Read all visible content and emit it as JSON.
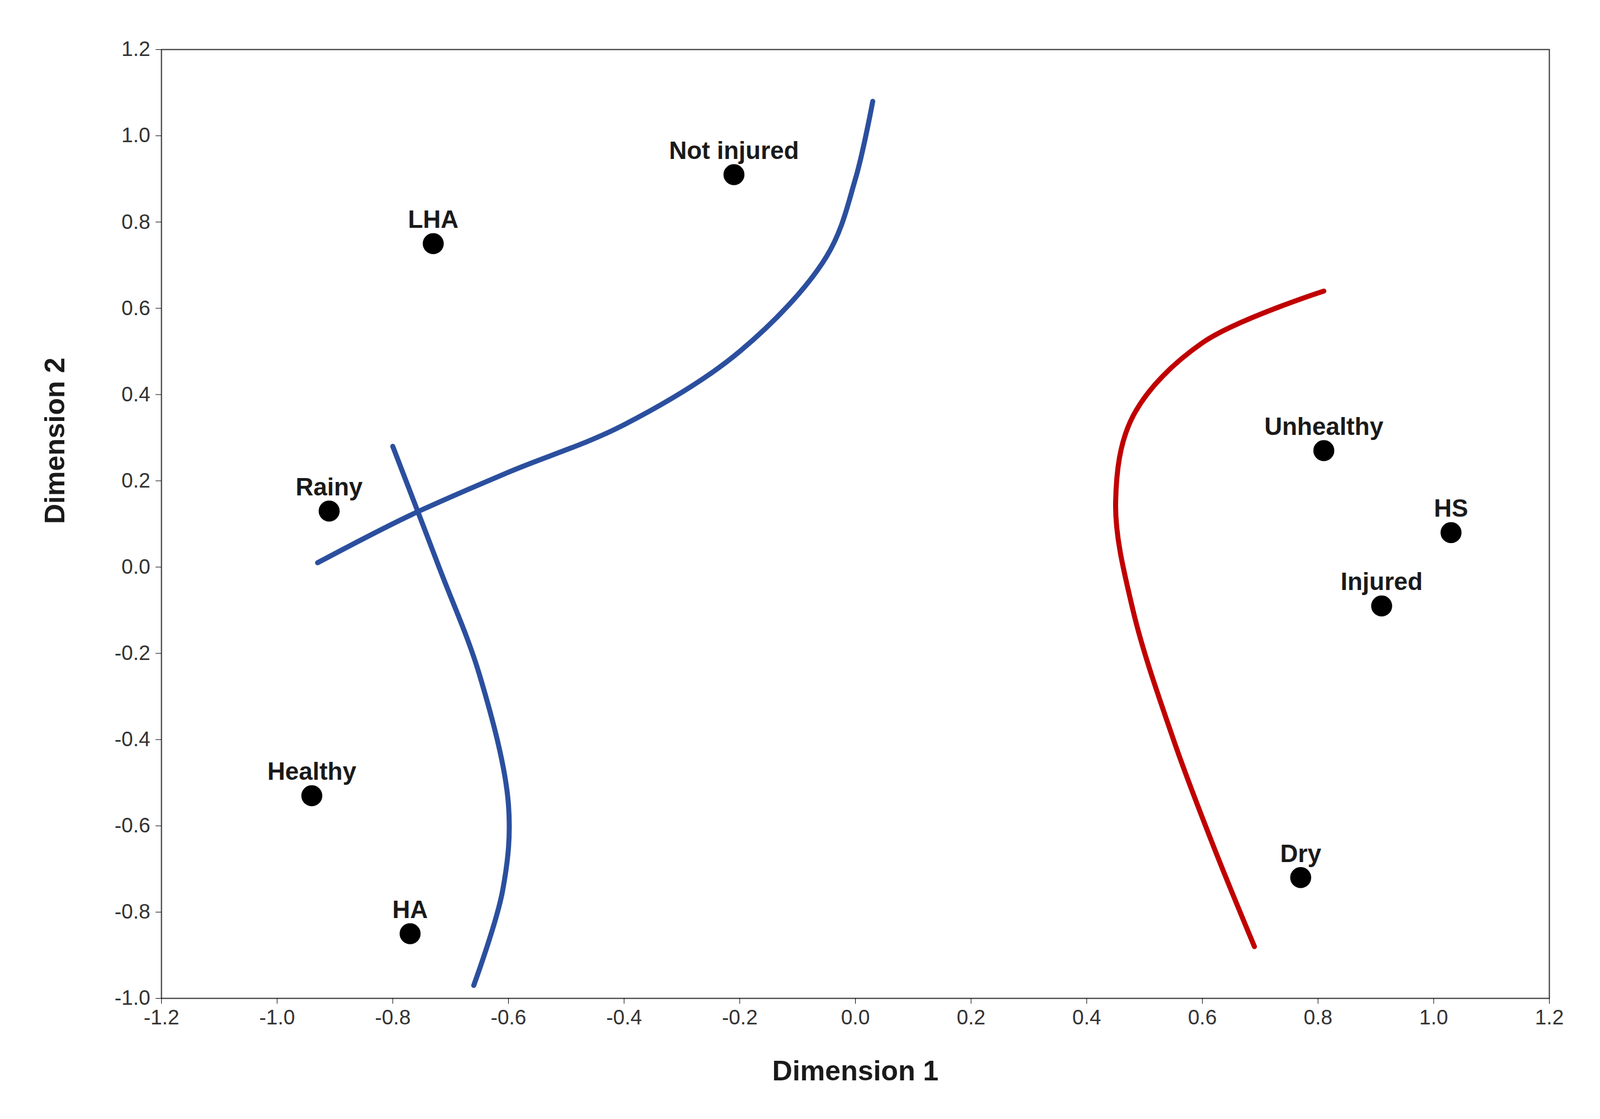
{
  "chart_data": {
    "type": "scatter",
    "x_label": "Dimension 1",
    "y_label": "Dimension 2",
    "labels": [
      "Not injured",
      "LHA",
      "Rainy",
      "Healthy",
      "HA",
      "Unhealthy",
      "HS",
      "Injured",
      "Dry"
    ],
    "x": [
      -0.21,
      -0.73,
      -0.91,
      -0.94,
      -0.77,
      0.81,
      1.03,
      0.91,
      0.77
    ],
    "y": [
      0.91,
      0.75,
      0.13,
      -0.53,
      -0.85,
      0.27,
      0.08,
      -0.09,
      -0.72
    ],
    "color": "#000000",
    "xlim": [
      -1.2,
      1.2
    ],
    "xticks": [
      -1.2,
      {
        "value": -1,
        "label": "-1.0"
      },
      -0.8,
      -0.6,
      -0.4,
      -0.2,
      {
        "value": 0,
        "label": "0.0"
      },
      0.2,
      0.4,
      0.6,
      0.8,
      {
        "value": 1,
        "label": "1.0"
      },
      1.2
    ],
    "ylim": [
      -1.0,
      1.2
    ],
    "yticks": [
      {
        "value": -1,
        "label": "-1.0"
      },
      -0.8,
      -0.6,
      -0.4,
      -0.2,
      {
        "value": 0,
        "label": "0.0"
      },
      0.2,
      0.4,
      0.6,
      0.8,
      {
        "value": 1,
        "label": "1.0"
      },
      1.2
    ],
    "curves": [
      {
        "color": "#2b4f9e",
        "x": [
          -0.93,
          -0.77,
          -0.6,
          -0.4,
          -0.2,
          -0.05,
          0.0,
          0.03
        ],
        "y": [
          0.01,
          0.12,
          0.22,
          0.33,
          0.5,
          0.72,
          0.9,
          1.08
        ]
      },
      {
        "color": "#2b4f9e",
        "x": [
          -0.8,
          -0.72,
          -0.65,
          -0.6,
          -0.61,
          -0.66
        ],
        "y": [
          0.28,
          0.0,
          -0.25,
          -0.55,
          -0.75,
          -0.97
        ]
      },
      {
        "color": "#c00000",
        "x": [
          0.81,
          0.6,
          0.48,
          0.45,
          0.48,
          0.55,
          0.62,
          0.69
        ],
        "y": [
          0.64,
          0.52,
          0.35,
          0.15,
          -0.1,
          -0.4,
          -0.65,
          -0.88
        ]
      }
    ]
  }
}
